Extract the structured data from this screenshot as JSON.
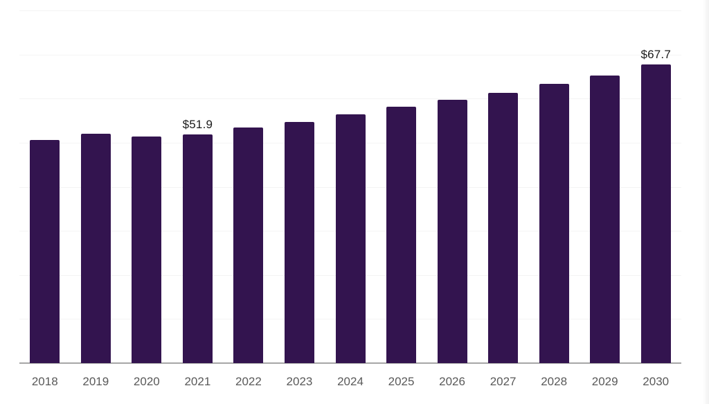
{
  "chart_data": {
    "type": "bar",
    "title": "",
    "xlabel": "",
    "ylabel": "",
    "categories": [
      "2018",
      "2019",
      "2020",
      "2021",
      "2022",
      "2023",
      "2024",
      "2025",
      "2026",
      "2027",
      "2028",
      "2029",
      "2030"
    ],
    "values": [
      50.6,
      52.1,
      51.4,
      51.9,
      53.4,
      54.7,
      56.5,
      58.1,
      59.7,
      61.3,
      63.3,
      65.3,
      67.7
    ],
    "value_prefix": "$",
    "visible_value_labels": [
      {
        "index": 3,
        "text": "$51.9"
      },
      {
        "index": 12,
        "text": "$67.7"
      }
    ],
    "ylim": [
      0,
      80
    ],
    "grid": "horizontal",
    "grid_step": 10,
    "y_axis_tick_labels_visible": false,
    "legend": "none"
  },
  "colors": {
    "bar": "#33144f",
    "axis_line": "#a6a6a6",
    "gridline": "#f4f4f4",
    "x_tick_label": "#595959",
    "data_label": "#1a1a1a",
    "background": "#ffffff"
  }
}
